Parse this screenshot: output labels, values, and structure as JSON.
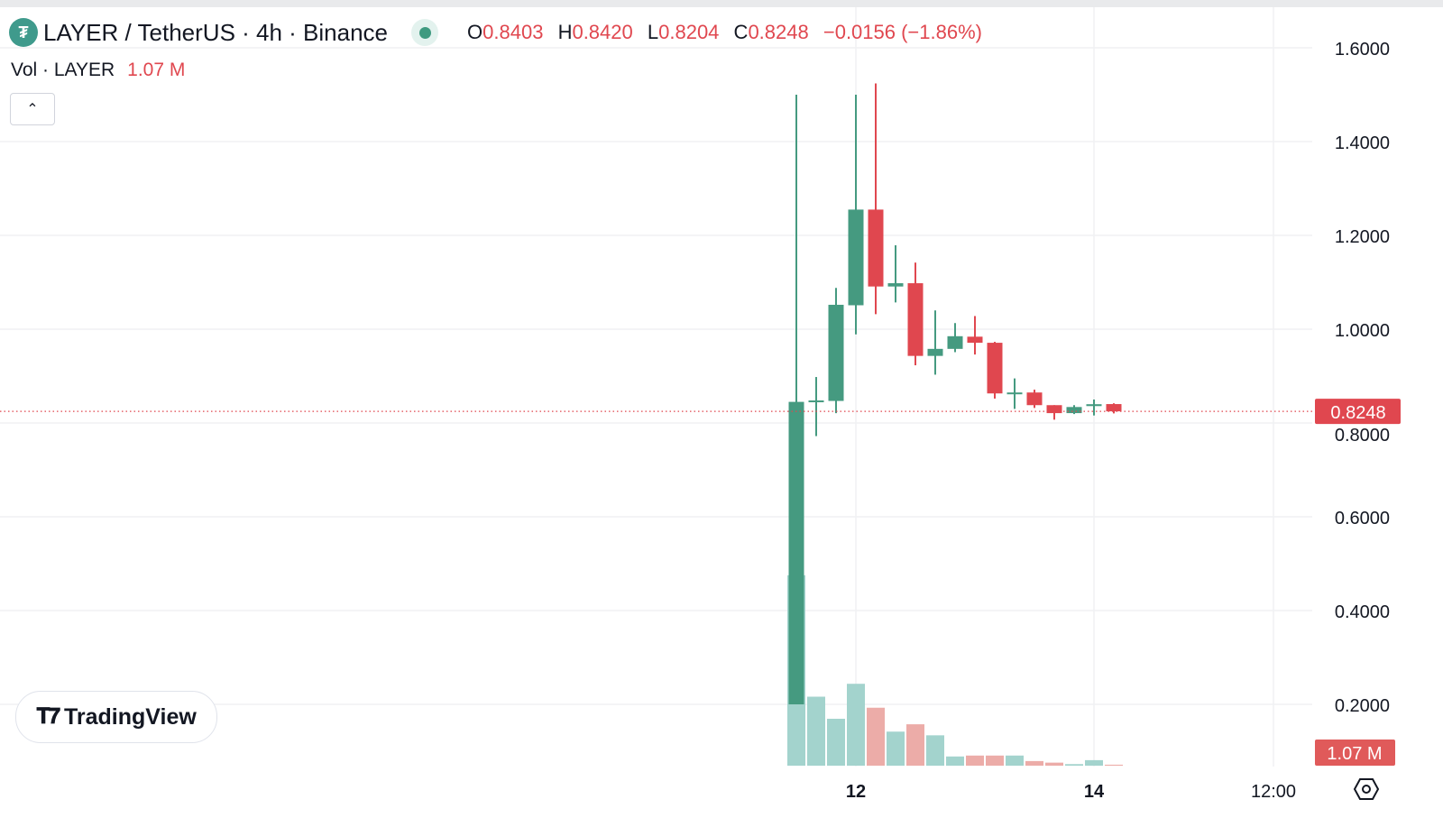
{
  "header": {
    "symbol_title": "LAYER / TetherUS · 4h · Binance",
    "logo_icon": "tether-logo-icon",
    "ohlc": {
      "o_label": "O",
      "o": "0.8403",
      "h_label": "H",
      "h": "0.8420",
      "l_label": "L",
      "l": "0.8204",
      "c_label": "C",
      "c": "0.8248",
      "change": "−0.0156 (−1.86%)"
    }
  },
  "volume_legend": {
    "label": "Vol · LAYER",
    "value": "1.07 M"
  },
  "branding": {
    "name": "TradingView"
  },
  "colors": {
    "up": "#459a80",
    "down": "#e0474f",
    "vol_up": "#a3d3cd",
    "vol_down": "#ecaca8",
    "grid": "#f0f1f3",
    "last_price_tag": "#e0474f"
  },
  "chart_data": {
    "type": "candlestick",
    "ylim": [
      0,
      1.65
    ],
    "y_ticks": [
      "1.6000",
      "1.4000",
      "1.2000",
      "1.0000",
      "0.8000",
      "0.6000",
      "0.4000",
      "0.2000"
    ],
    "x_ticks": [
      "12",
      "14",
      "12:00"
    ],
    "grid": true,
    "last_price": "0.8248",
    "last_volume": "1.07 M",
    "candles": [
      {
        "o": 0.2,
        "h": 1.5,
        "l": 0.2,
        "c": 0.845
      },
      {
        "o": 0.845,
        "h": 0.898,
        "l": 0.772,
        "c": 0.848
      },
      {
        "o": 0.847,
        "h": 1.088,
        "l": 0.821,
        "c": 1.052
      },
      {
        "o": 1.051,
        "h": 1.5,
        "l": 0.989,
        "c": 1.255
      },
      {
        "o": 1.255,
        "h": 1.524,
        "l": 1.032,
        "c": 1.091
      },
      {
        "o": 1.091,
        "h": 1.179,
        "l": 1.057,
        "c": 1.098
      },
      {
        "o": 1.098,
        "h": 1.142,
        "l": 0.923,
        "c": 0.943
      },
      {
        "o": 0.943,
        "h": 1.04,
        "l": 0.903,
        "c": 0.958
      },
      {
        "o": 0.958,
        "h": 1.013,
        "l": 0.951,
        "c": 0.985
      },
      {
        "o": 0.984,
        "h": 1.028,
        "l": 0.946,
        "c": 0.971
      },
      {
        "o": 0.971,
        "h": 0.973,
        "l": 0.852,
        "c": 0.863
      },
      {
        "o": 0.862,
        "h": 0.895,
        "l": 0.83,
        "c": 0.865
      },
      {
        "o": 0.865,
        "h": 0.871,
        "l": 0.832,
        "c": 0.838
      },
      {
        "o": 0.838,
        "h": 0.838,
        "l": 0.807,
        "c": 0.821
      },
      {
        "o": 0.821,
        "h": 0.838,
        "l": 0.819,
        "c": 0.834
      },
      {
        "o": 0.836,
        "h": 0.85,
        "l": 0.816,
        "c": 0.84
      },
      {
        "o": 0.8403,
        "h": 0.842,
        "l": 0.8204,
        "c": 0.8248
      }
    ],
    "volume_millions": [
      207,
      75,
      51,
      89,
      63,
      37,
      45,
      33,
      10,
      11,
      11,
      11,
      5,
      3.3,
      1.7,
      6,
      1.07
    ]
  }
}
